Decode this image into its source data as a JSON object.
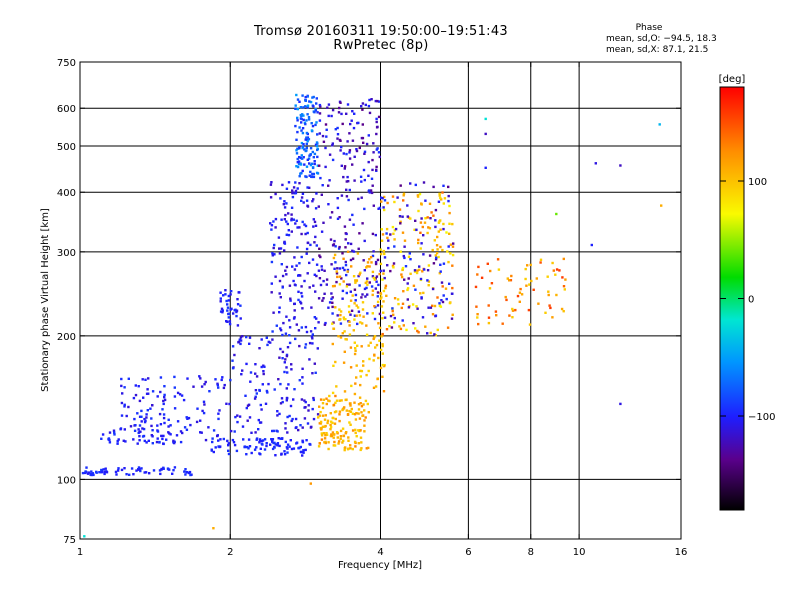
{
  "header": {
    "title": "Tromsø 20160311 19:50:00–19:51:43",
    "subtitle": "RwPretec (8p)"
  },
  "phase_box": {
    "title": "Phase",
    "line_o": "mean, sd,O: −94.5, 18.3",
    "line_x": "mean, sd,X:  87.1, 21.5"
  },
  "colorbar": {
    "unit": "[deg]",
    "range": [
      -180,
      180
    ],
    "ticks": [
      {
        "value": 100,
        "label": "100"
      },
      {
        "value": 0,
        "label": "0"
      },
      {
        "value": -100,
        "label": "−100"
      }
    ]
  },
  "chart_data": {
    "type": "scatter",
    "xlabel": "Frequency [MHz]",
    "ylabel": "Stationary phase Virtual Height [km]",
    "xscale": "log",
    "yscale": "log",
    "xlim": [
      1,
      16
    ],
    "ylim": [
      75,
      750
    ],
    "x_ticks": [
      {
        "value": 1,
        "label": "1"
      },
      {
        "value": 2,
        "label": "2"
      },
      {
        "value": 4,
        "label": "4"
      },
      {
        "value": 6,
        "label": "6"
      },
      {
        "value": 8,
        "label": "8"
      },
      {
        "value": 10,
        "label": "10"
      },
      {
        "value": 16,
        "label": "16"
      }
    ],
    "x_grid": [
      2,
      4,
      6,
      8,
      10
    ],
    "y_ticks": [
      {
        "value": 75,
        "label": "75"
      },
      {
        "value": 100,
        "label": "100"
      },
      {
        "value": 200,
        "label": "200"
      },
      {
        "value": 300,
        "label": "300"
      },
      {
        "value": 400,
        "label": "400"
      },
      {
        "value": 500,
        "label": "500"
      },
      {
        "value": 600,
        "label": "600"
      },
      {
        "value": 750,
        "label": "750"
      }
    ],
    "y_grid": [
      100,
      200,
      300,
      400,
      500,
      600
    ],
    "grid": true,
    "color_variable": "phase [deg]",
    "point_groups": [
      {
        "x": [
          1.0,
          1.7
        ],
        "y": [
          102,
          106
        ],
        "phase": [
          -105,
          -90
        ],
        "n": 70
      },
      {
        "x": [
          1.1,
          1.6
        ],
        "y": [
          118,
          130
        ],
        "phase": [
          -110,
          -90
        ],
        "n": 45
      },
      {
        "x": [
          1.2,
          2.0
        ],
        "y": [
          120,
          165
        ],
        "phase": [
          -115,
          -90
        ],
        "n": 130
      },
      {
        "x": [
          1.8,
          2.9
        ],
        "y": [
          112,
          122
        ],
        "phase": [
          -105,
          -90
        ],
        "n": 100
      },
      {
        "x": [
          1.9,
          2.1
        ],
        "y": [
          210,
          250
        ],
        "phase": [
          -110,
          -90
        ],
        "n": 40
      },
      {
        "x": [
          2.0,
          3.0
        ],
        "y": [
          125,
          200
        ],
        "phase": [
          -120,
          -90
        ],
        "n": 150
      },
      {
        "x": [
          2.4,
          3.0
        ],
        "y": [
          200,
          420
        ],
        "phase": [
          -120,
          -90
        ],
        "n": 170
      },
      {
        "x": [
          2.7,
          3.0
        ],
        "y": [
          430,
          640
        ],
        "phase": [
          -100,
          -50
        ],
        "n": 140
      },
      {
        "x": [
          3.0,
          4.0
        ],
        "y": [
          210,
          630
        ],
        "phase": [
          -140,
          -90
        ],
        "n": 260
      },
      {
        "x": [
          3.0,
          3.8
        ],
        "y": [
          115,
          150
        ],
        "phase": [
          90,
          130
        ],
        "n": 160
      },
      {
        "x": [
          3.2,
          4.1
        ],
        "y": [
          150,
          300
        ],
        "phase": [
          85,
          125
        ],
        "n": 150
      },
      {
        "x": [
          4.0,
          5.6
        ],
        "y": [
          200,
          400
        ],
        "phase": [
          70,
          140
        ],
        "n": 160
      },
      {
        "x": [
          4.0,
          5.6
        ],
        "y": [
          200,
          420
        ],
        "phase": [
          -140,
          -90
        ],
        "n": 100
      },
      {
        "x": [
          6.2,
          9.4
        ],
        "y": [
          210,
          290
        ],
        "phase": [
          90,
          160
        ],
        "n": 70
      }
    ],
    "outliers": [
      {
        "x": 2.9,
        "y": 98,
        "phase": 120
      },
      {
        "x": 6.5,
        "y": 570,
        "phase": -20
      },
      {
        "x": 6.5,
        "y": 530,
        "phase": -120
      },
      {
        "x": 6.5,
        "y": 450,
        "phase": -100
      },
      {
        "x": 9.0,
        "y": 360,
        "phase": 40
      },
      {
        "x": 10.6,
        "y": 310,
        "phase": -100
      },
      {
        "x": 10.8,
        "y": 460,
        "phase": -110
      },
      {
        "x": 12.1,
        "y": 455,
        "phase": -120
      },
      {
        "x": 12.1,
        "y": 144,
        "phase": -110
      },
      {
        "x": 14.5,
        "y": 555,
        "phase": -40
      },
      {
        "x": 14.6,
        "y": 375,
        "phase": 110
      },
      {
        "x": 1.85,
        "y": 79,
        "phase": 110
      },
      {
        "x": 1.02,
        "y": 76,
        "phase": -20
      }
    ]
  }
}
